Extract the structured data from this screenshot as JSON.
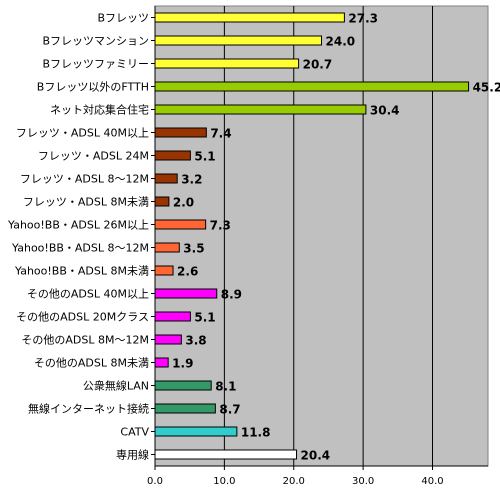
{
  "chart_data": {
    "type": "bar",
    "orientation": "horizontal",
    "title": "",
    "xlabel": "",
    "ylabel": "",
    "xlim": [
      0,
      48
    ],
    "x_ticks": [
      "0.0",
      "10.0",
      "20.0",
      "30.0",
      "40.0"
    ],
    "x_tick_values": [
      0,
      10,
      20,
      30,
      40
    ],
    "grid": "vertical",
    "legend": "none",
    "plot_background": "#c0c0c0",
    "categories": [
      "Bフレッツ",
      "Bフレッツマンション",
      "Bフレッツファミリー",
      "Bフレッツ以外のFTTH",
      "ネット対応集合住宅",
      "フレッツ・ADSL 40M以上",
      "フレッツ・ADSL 24M",
      "フレッツ・ADSL 8～12M",
      "フレッツ・ADSL 8M未満",
      "Yahoo!BB・ADSL 26M以上",
      "Yahoo!BB・ADSL 8～12M",
      "Yahoo!BB・ADSL 8M未満",
      "その他のADSL 40M以上",
      "その他のADSL 20Mクラス",
      "その他のADSL 8M～12M",
      "その他のADSL 8M未満",
      "公衆無線LAN",
      "無線インターネット接続",
      "CATV",
      "専用線"
    ],
    "values": [
      27.3,
      24.0,
      20.7,
      45.2,
      30.4,
      7.4,
      5.1,
      3.2,
      2.0,
      7.3,
      3.5,
      2.6,
      8.9,
      5.1,
      3.8,
      1.9,
      8.1,
      8.7,
      11.8,
      20.4
    ],
    "value_labels": [
      "27.3",
      "24.0",
      "20.7",
      "45.2",
      "30.4",
      "7.4",
      "5.1",
      "3.2",
      "2.0",
      "7.3",
      "3.5",
      "2.6",
      "8.9",
      "5.1",
      "3.8",
      "1.9",
      "8.1",
      "8.7",
      "11.8",
      "20.4"
    ],
    "colors": [
      "#ffff33",
      "#ffff33",
      "#ffff33",
      "#99cc00",
      "#99cc00",
      "#993300",
      "#993300",
      "#993300",
      "#993300",
      "#ff6633",
      "#ff6633",
      "#ff6633",
      "#ff00ff",
      "#ff00ff",
      "#ff00ff",
      "#ff00ff",
      "#339966",
      "#339966",
      "#33cccc",
      "#ffffff"
    ]
  }
}
